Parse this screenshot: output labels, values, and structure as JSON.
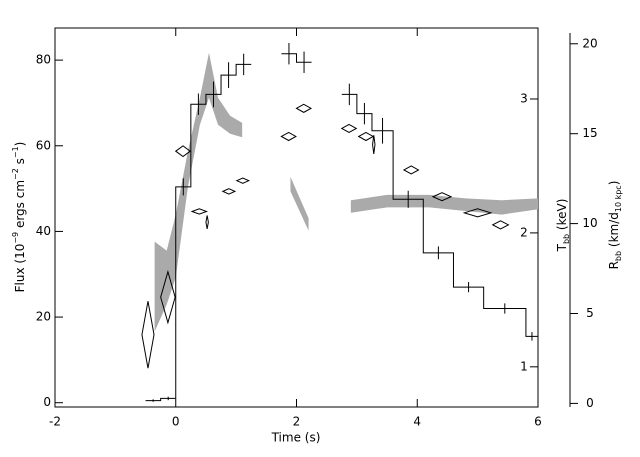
{
  "chart_data": {
    "type": "multi-axis",
    "xlabel": "Time (s)",
    "ylabel": [
      "Flux (10",
      "−9",
      " ergs cm",
      "−2",
      " s",
      "−1",
      ")"
    ],
    "y2label": [
      "T",
      "bb",
      " (keV)"
    ],
    "y3label": [
      "R",
      "bb",
      " (km/d",
      "10 kpc",
      ")"
    ],
    "xlim": [
      -2,
      6
    ],
    "xticks": [
      -2,
      0,
      2,
      4,
      6
    ],
    "ylim": [
      -1,
      87.5
    ],
    "yticks": [
      0,
      20,
      40,
      60,
      80
    ],
    "y2lim": [
      0.7,
      3.53
    ],
    "y2ticks": [
      1,
      2,
      3
    ],
    "y3lim": [
      -0.2,
      20.6
    ],
    "y3ticks": [
      0,
      5,
      10,
      15,
      20
    ],
    "flux": {
      "color": "#000000",
      "bins": [
        -0.5,
        -0.25,
        0,
        0.25,
        0.5,
        0.75,
        1.0,
        1.25,
        1.75,
        2.0,
        2.25,
        2.75,
        3.0,
        3.25,
        3.6,
        4.1,
        4.6,
        5.1,
        5.8,
        6.0
      ],
      "values": [
        0.5,
        1,
        50.4,
        69.7,
        72,
        76.5,
        79,
        null,
        81.5,
        79.5,
        null,
        72,
        67.5,
        63.5,
        47.5,
        35,
        27,
        22,
        15.5
      ],
      "errors": [
        0.3,
        0.4,
        2,
        2.5,
        3,
        3,
        2.5,
        null,
        2.5,
        2.5,
        null,
        2.5,
        2.5,
        3,
        2,
        1.5,
        1.2,
        1.2,
        1
      ]
    },
    "temperature": {
      "color": "#000000",
      "x": [
        -0.46,
        -0.13,
        0.12,
        0.39,
        0.52,
        0.88,
        1.11,
        1.87,
        2.12,
        2.87,
        3.15,
        3.28,
        3.9,
        4.41,
        5.0,
        5.38
      ],
      "xerr": [
        0.1,
        0.12,
        0.12,
        0.12,
        0.02,
        0.1,
        0.1,
        0.12,
        0.12,
        0.12,
        0.12,
        0.02,
        0.12,
        0.15,
        0.22,
        0.13
      ],
      "values": [
        1.24,
        1.52,
        2.61,
        2.16,
        2.08,
        2.31,
        2.39,
        2.72,
        2.93,
        2.78,
        2.72,
        2.66,
        2.47,
        2.27,
        2.15,
        2.06
      ],
      "errors": [
        0.25,
        0.19,
        0.04,
        0.02,
        0.05,
        0.02,
        0.02,
        0.03,
        0.03,
        0.03,
        0.03,
        0.07,
        0.03,
        0.03,
        0.03,
        0.03
      ]
    },
    "radius": {
      "color": "#aaaaaa",
      "x": [
        -0.35,
        -0.15,
        0.0,
        0.2,
        0.4,
        0.55,
        0.7,
        0.9,
        1.1,
        null,
        1.9,
        2.2,
        null,
        2.9,
        3.5,
        4.2,
        4.8,
        5.4,
        6.0
      ],
      "lower": [
        4.0,
        5.5,
        7.0,
        12,
        15.5,
        17,
        15.5,
        15,
        14.8,
        null,
        11.8,
        9.6,
        null,
        10.6,
        10.9,
        10.9,
        10.7,
        10.5,
        10.8
      ],
      "upper": [
        9.0,
        8.5,
        10.5,
        14,
        17,
        19.5,
        17,
        16,
        15.6,
        null,
        12.6,
        10.3,
        null,
        11.3,
        11.6,
        11.6,
        11.4,
        11.3,
        11.4
      ]
    }
  }
}
